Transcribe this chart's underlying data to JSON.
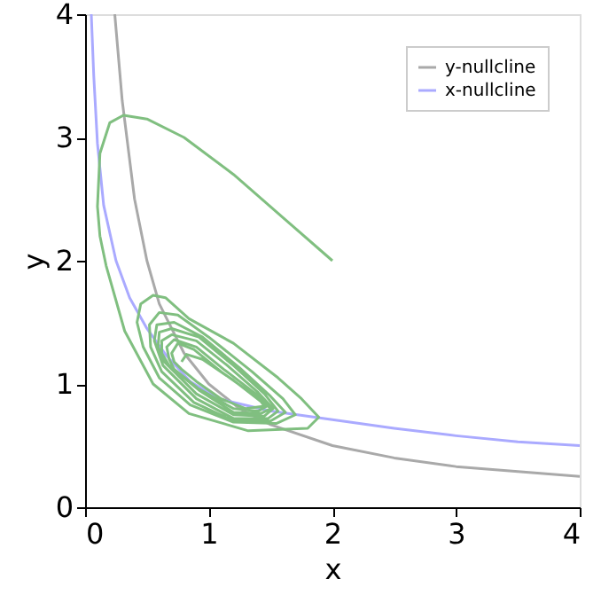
{
  "chart_data": {
    "type": "line",
    "xlabel": "x",
    "ylabel": "y",
    "xlim": [
      0,
      4
    ],
    "ylim": [
      0,
      4
    ],
    "xticks": [
      0,
      1,
      2,
      3,
      4
    ],
    "yticks": [
      0,
      1,
      2,
      3,
      4
    ],
    "grid": false,
    "legend": "top right",
    "marker": "none",
    "line_style": "solid",
    "series": [
      {
        "name": "y-nullcline",
        "color": "#a9a9a9",
        "x": [
          0.24,
          0.3,
          0.4,
          0.5,
          0.6,
          0.8,
          1,
          1.25,
          1.5,
          2,
          2.5,
          3,
          3.5,
          4
        ],
        "values": [
          4,
          3.3,
          2.5,
          2.0,
          1.65,
          1.25,
          1.0,
          0.8,
          0.67,
          0.5,
          0.4,
          0.33,
          0.29,
          0.25
        ]
      },
      {
        "name": "x-nullcline",
        "color": "#aaaaff",
        "x": [
          0.05,
          0.07,
          0.1,
          0.15,
          0.25,
          0.36,
          0.5,
          0.65,
          0.85,
          1.08,
          1.5,
          2,
          2.5,
          3,
          3.5,
          4
        ],
        "values": [
          4,
          3.5,
          2.95,
          2.45,
          2.0,
          1.7,
          1.45,
          1.24,
          1.02,
          0.88,
          0.78,
          0.71,
          0.64,
          0.58,
          0.53,
          0.5
        ]
      },
      {
        "color": "#80bf80",
        "x": [
          2,
          1.6,
          1.2,
          0.8,
          0.5,
          0.31,
          0.2,
          0.12,
          0.1,
          0.12,
          0.17,
          0.32,
          0.55,
          0.84,
          1.32,
          1.8,
          1.89,
          1.75,
          1.56,
          1.2,
          0.84,
          0.65,
          0.55,
          0.45,
          0.42,
          0.47,
          0.6,
          0.85,
          1.2,
          1.55,
          1.7,
          1.6,
          1.35,
          1.0,
          0.75,
          0.6,
          0.52,
          0.53,
          0.62,
          0.88,
          1.2,
          1.5,
          1.62,
          1.5,
          1.25,
          0.95,
          0.72,
          0.58,
          0.56,
          0.63,
          0.9,
          1.2,
          1.48,
          1.56,
          1.45,
          1.2,
          0.92,
          0.7,
          0.6,
          0.59,
          0.64,
          0.9,
          1.2,
          1.45,
          1.52,
          1.4,
          1.15,
          0.9,
          0.7,
          0.62,
          0.62,
          0.68,
          0.92,
          1.2,
          1.42,
          1.5,
          1.38,
          1.12,
          0.9,
          0.72,
          0.66,
          0.68,
          0.72,
          0.92,
          1.2,
          1.4,
          1.47,
          1.35,
          1.1,
          0.88,
          0.75,
          0.7,
          0.72,
          0.78,
          0.9,
          1.1,
          1.3,
          1.45,
          1.42,
          1.2,
          0.95,
          0.82,
          0.78
        ],
        "values": [
          2,
          2.35,
          2.7,
          3.0,
          3.15,
          3.18,
          3.12,
          2.87,
          2.44,
          2.2,
          1.96,
          1.43,
          1.0,
          0.76,
          0.62,
          0.64,
          0.73,
          0.88,
          1.05,
          1.33,
          1.53,
          1.7,
          1.72,
          1.65,
          1.5,
          1.3,
          1.05,
          0.83,
          0.69,
          0.68,
          0.75,
          0.88,
          1.1,
          1.38,
          1.56,
          1.58,
          1.48,
          1.3,
          1.1,
          0.85,
          0.7,
          0.7,
          0.77,
          0.9,
          1.13,
          1.38,
          1.5,
          1.48,
          1.35,
          1.15,
          0.88,
          0.72,
          0.72,
          0.78,
          0.92,
          1.15,
          1.38,
          1.45,
          1.42,
          1.3,
          1.18,
          0.92,
          0.75,
          0.74,
          0.8,
          0.93,
          1.15,
          1.35,
          1.4,
          1.35,
          1.25,
          1.15,
          0.95,
          0.77,
          0.76,
          0.8,
          0.92,
          1.12,
          1.3,
          1.36,
          1.3,
          1.2,
          1.12,
          0.96,
          0.8,
          0.78,
          0.82,
          0.92,
          1.1,
          1.28,
          1.33,
          1.25,
          1.18,
          1.12,
          1.02,
          0.88,
          0.8,
          0.82,
          0.86,
          1.03,
          1.2,
          1.24,
          1.18
        ]
      }
    ]
  }
}
